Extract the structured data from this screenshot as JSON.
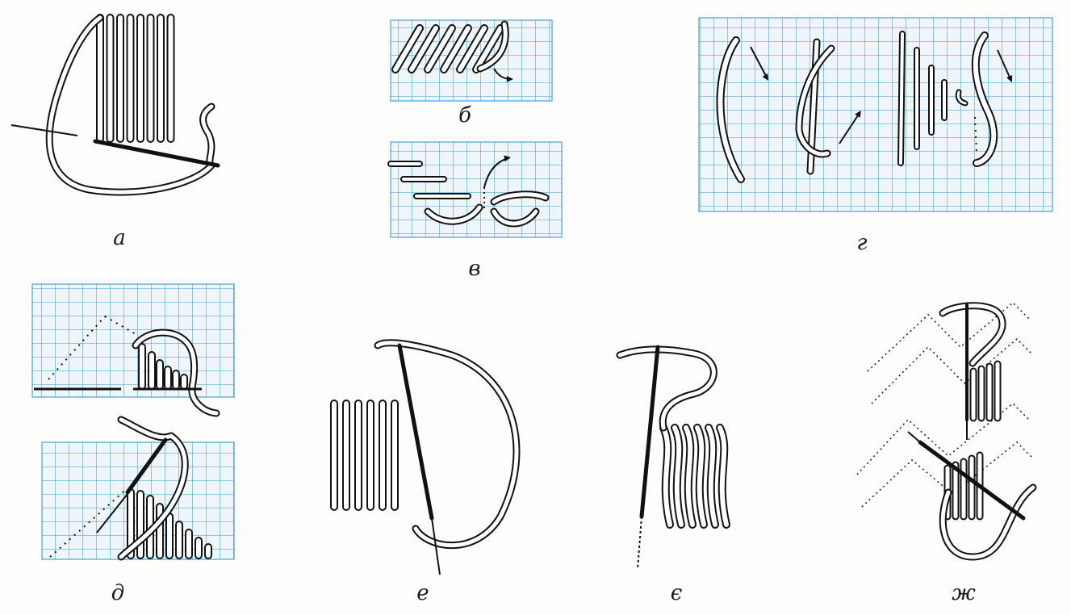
{
  "figure": {
    "panels": [
      {
        "id": "a",
        "label": "а",
        "has_grid": false
      },
      {
        "id": "b",
        "label": "б",
        "has_grid": true
      },
      {
        "id": "v",
        "label": "в",
        "has_grid": true
      },
      {
        "id": "g",
        "label": "г",
        "has_grid": true
      },
      {
        "id": "d",
        "label": "д",
        "has_grid": true
      },
      {
        "id": "e",
        "label": "е",
        "has_grid": false
      },
      {
        "id": "ye",
        "label": "є",
        "has_grid": false
      },
      {
        "id": "zh",
        "label": "ж",
        "has_grid": false
      }
    ]
  },
  "colors": {
    "grid_line": "#5aa9d6",
    "grid_bg": "#eef6fb",
    "ink": "#111111",
    "thread_fill": "#ffffff",
    "paper": "#fdfdfb"
  }
}
